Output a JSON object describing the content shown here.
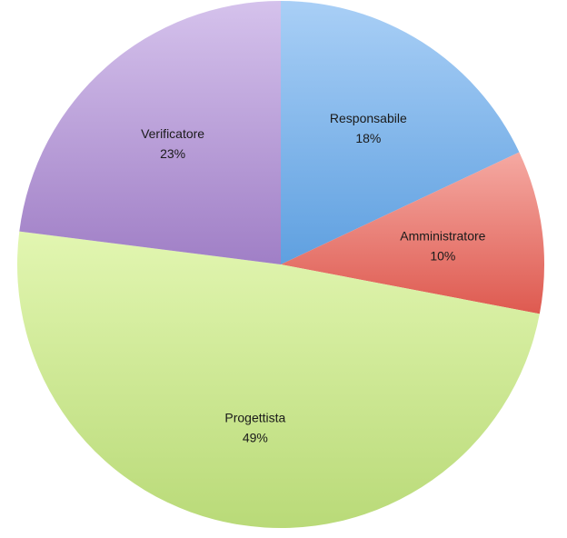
{
  "chart_data": {
    "type": "pie",
    "title": "",
    "slices": [
      {
        "label": "Responsabile",
        "value": 18,
        "value_label": "18%",
        "color_top": "#a9cff6",
        "color_bottom": "#5fa0e0"
      },
      {
        "label": "Amministratore",
        "value": 10,
        "value_label": "10%",
        "color_top": "#f5a9a2",
        "color_bottom": "#de5a50"
      },
      {
        "label": "Progettista",
        "value": 49,
        "value_label": "49%",
        "color_top": "#e2f6b1",
        "color_bottom": "#b9da78"
      },
      {
        "label": "Verificatore",
        "value": 23,
        "value_label": "23%",
        "color_top": "#d5c2ec",
        "color_bottom": "#a07fc6"
      }
    ],
    "start_angle_deg": 0,
    "direction": "clockwise",
    "legend": "none",
    "data_labels": "inside"
  }
}
